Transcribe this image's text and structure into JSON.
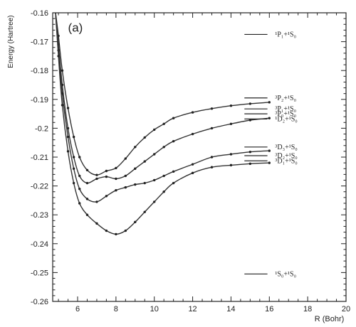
{
  "chart_data": {
    "type": "line",
    "panel_label": "(a)",
    "xlabel": "R (Bohr)",
    "ylabel": "Energy (Hartree)",
    "xlim": [
      4.7,
      20
    ],
    "ylim": [
      -0.26,
      -0.16
    ],
    "x_ticks": [
      6,
      8,
      10,
      12,
      14,
      16,
      18,
      20
    ],
    "y_ticks": [
      -0.16,
      -0.17,
      -0.18,
      -0.19,
      -0.2,
      -0.21,
      -0.22,
      -0.23,
      -0.24,
      -0.25,
      -0.26
    ],
    "x_tick_labels": [
      "6",
      "8",
      "10",
      "12",
      "14",
      "16",
      "18",
      "20"
    ],
    "y_tick_labels": [
      "-0.16",
      "-0.17",
      "-0.18",
      "-0.19",
      "-0.2",
      "-0.21",
      "-0.22",
      "-0.23",
      "-0.24",
      "-0.25",
      "-0.26"
    ],
    "grid": false,
    "series": [
      {
        "x": [
          4.85,
          5.0,
          5.2,
          5.5,
          5.8,
          6.1,
          6.5,
          7.0,
          7.5,
          8.0,
          8.5,
          9.0,
          9.5,
          10.0,
          10.5,
          11.0,
          12.0,
          13.0,
          14.0,
          15.0,
          16.0
        ],
        "y": [
          -0.16,
          -0.168,
          -0.18,
          -0.193,
          -0.203,
          -0.21,
          -0.2145,
          -0.2162,
          -0.2148,
          -0.2138,
          -0.2105,
          -0.2065,
          -0.2032,
          -0.2005,
          -0.1985,
          -0.1965,
          -0.1945,
          -0.1932,
          -0.1922,
          -0.1915,
          -0.191
        ]
      },
      {
        "x": [
          4.85,
          5.0,
          5.2,
          5.5,
          5.8,
          6.1,
          6.5,
          7.0,
          7.5,
          8.0,
          8.5,
          9.0,
          9.5,
          10.0,
          10.5,
          11.0,
          12.0,
          13.0,
          14.0,
          15.0,
          16.0
        ],
        "y": [
          -0.16,
          -0.171,
          -0.185,
          -0.2,
          -0.21,
          -0.2165,
          -0.219,
          -0.2175,
          -0.2168,
          -0.2175,
          -0.2165,
          -0.214,
          -0.2115,
          -0.209,
          -0.2065,
          -0.2045,
          -0.202,
          -0.2,
          -0.1985,
          -0.1972,
          -0.1965
        ]
      },
      {
        "x": [
          4.85,
          5.0,
          5.2,
          5.5,
          5.8,
          6.1,
          6.5,
          7.0,
          7.5,
          8.0,
          8.5,
          9.0,
          9.5,
          10.0,
          10.5,
          11.0,
          12.0,
          13.0,
          14.0,
          15.0,
          16.0
        ],
        "y": [
          -0.16,
          -0.173,
          -0.188,
          -0.203,
          -0.214,
          -0.221,
          -0.2245,
          -0.2255,
          -0.2235,
          -0.2215,
          -0.2205,
          -0.2195,
          -0.219,
          -0.218,
          -0.2165,
          -0.215,
          -0.2125,
          -0.21,
          -0.209,
          -0.2082,
          -0.2078
        ]
      },
      {
        "x": [
          4.85,
          5.0,
          5.2,
          5.5,
          5.8,
          6.1,
          6.5,
          7.0,
          7.5,
          8.0,
          8.5,
          9.0,
          9.5,
          10.0,
          10.5,
          11.0,
          12.0,
          13.0,
          14.0,
          15.0,
          16.0
        ],
        "y": [
          -0.16,
          -0.175,
          -0.192,
          -0.208,
          -0.219,
          -0.226,
          -0.23,
          -0.233,
          -0.2355,
          -0.2367,
          -0.2355,
          -0.2325,
          -0.229,
          -0.2255,
          -0.222,
          -0.219,
          -0.2155,
          -0.2135,
          -0.2128,
          -0.2123,
          -0.212
        ]
      }
    ],
    "asymptotes": [
      {
        "y": -0.1675,
        "label": "¹P₁+¹S₀"
      },
      {
        "y": -0.1895,
        "label": "³P₂+¹S₀"
      },
      {
        "y": -0.1933,
        "label": "³P₁+¹S₀"
      },
      {
        "y": -0.195,
        "label": "³P₀+¹S₀"
      },
      {
        "y": -0.1968,
        "label": "¹D₂+¹S₀"
      },
      {
        "y": -0.2065,
        "label": "³D₃+¹S₀"
      },
      {
        "y": -0.2095,
        "label": "³D₂+¹S₀"
      },
      {
        "y": -0.2113,
        "label": "³D₁+¹S₀"
      },
      {
        "y": -0.2505,
        "label": "¹S₀+¹S₀"
      }
    ]
  }
}
